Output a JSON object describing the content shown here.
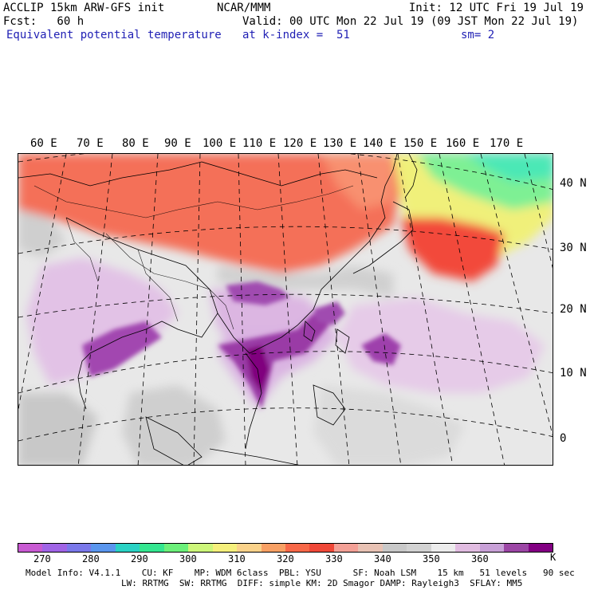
{
  "header": {
    "model": "ACCLIP 15km ARW-GFS init",
    "forecast": "Fcst:   60 h",
    "field": "Equivalent potential temperature",
    "org": "NCAR/MMM",
    "init": "Init: 12 UTC Fri 19 Jul 19",
    "valid": "Valid: 00 UTC Mon 22 Jul 19 (09 JST Mon 22 Jul 19)",
    "level": "at k-index =  51",
    "smoothing": "sm= 2"
  },
  "map": {
    "longitude_labels": [
      "60 E",
      "70 E",
      "80 E",
      "90 E",
      "100 E",
      "110 E",
      "120 E",
      "130 E",
      "140 E",
      "150 E",
      "160 E",
      "170 E"
    ],
    "latitude_labels": [
      "40 N",
      "30 N",
      "20 N",
      "10 N",
      "0"
    ]
  },
  "colorbar": {
    "unit": "K",
    "tick_labels": [
      "270",
      "280",
      "290",
      "300",
      "310",
      "320",
      "330",
      "340",
      "350",
      "360"
    ],
    "colors": [
      "#c85ad2",
      "#a064e6",
      "#7a78ea",
      "#5a96ee",
      "#2ad2c4",
      "#34e690",
      "#6cf07a",
      "#cdf67a",
      "#f5f07c",
      "#fad28a",
      "#f8a064",
      "#f86848",
      "#f04838",
      "#f3a096",
      "#e8c2b4",
      "#c8c8c8",
      "#d2d2d2",
      "#ececec",
      "#e1bce1",
      "#c8a0d7",
      "#9c46a5",
      "#820082"
    ]
  },
  "footer": {
    "line1": "Model Info: V4.1.1    CU: KF    MP: WDM 6class  PBL: YSU      SF: Noah LSM    15 km   51 levels   90 sec",
    "line2": "LW: RRTMG  SW: RRTMG  DIFF: simple KM: 2D Smagor DAMP: Rayleigh3  SFLAY: MM5"
  }
}
